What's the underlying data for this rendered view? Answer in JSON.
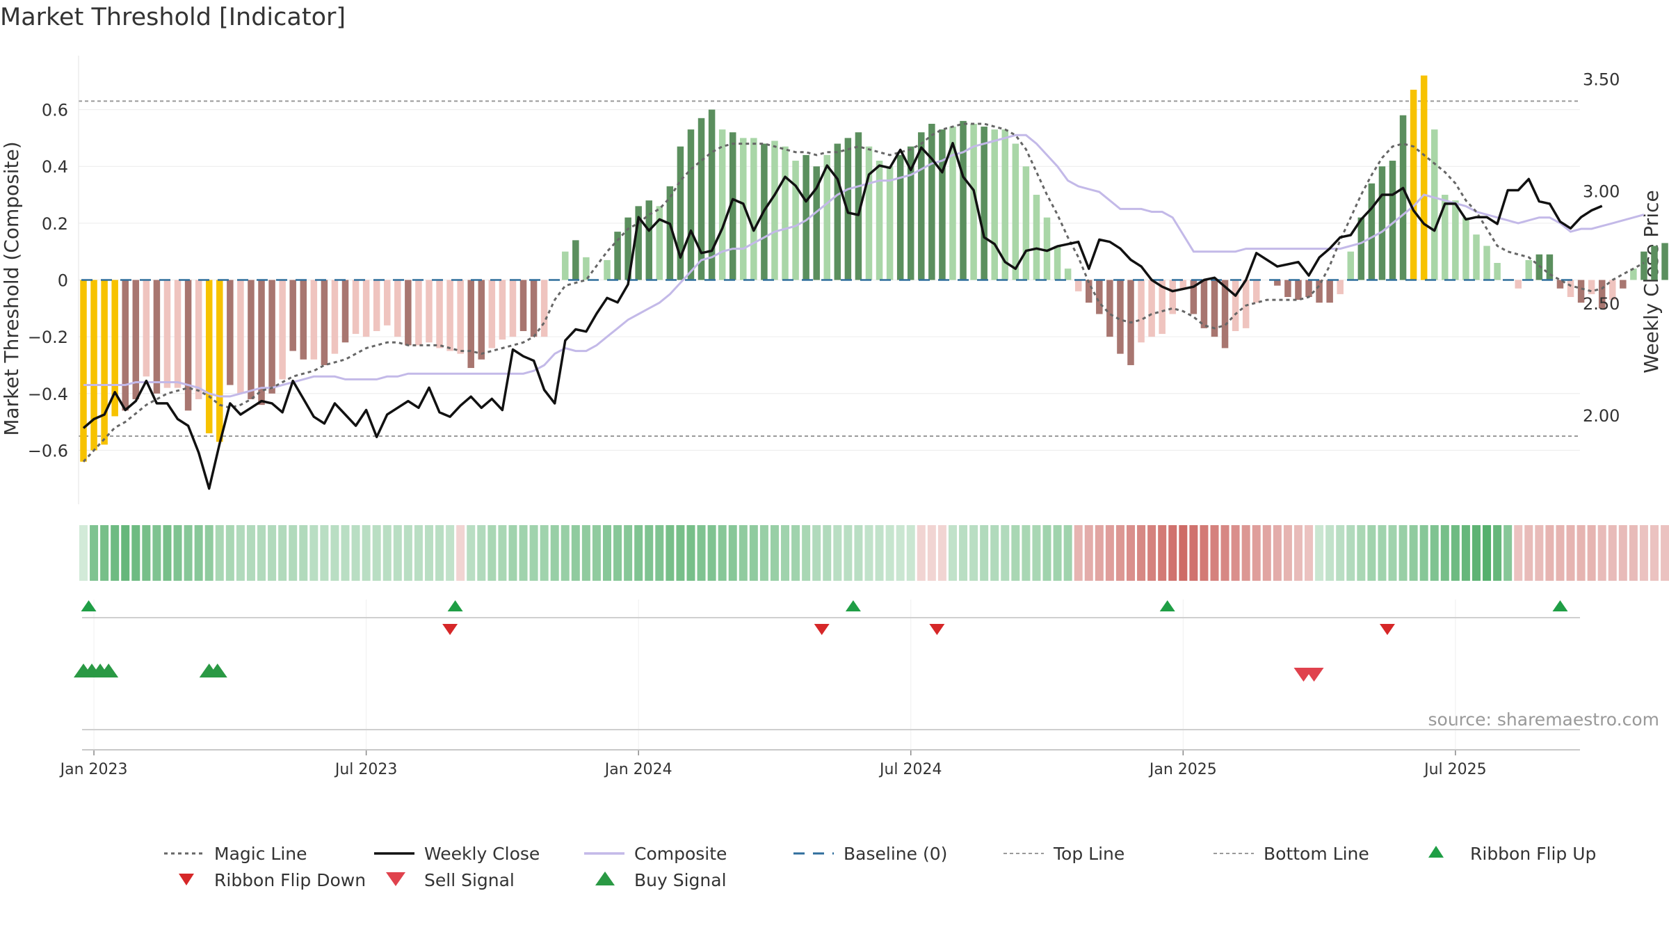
{
  "chart_data": {
    "type": "bar",
    "title": "Market Threshold [Indicator]",
    "ylabel_left": "Market Threshold (Composite)",
    "ylabel_right": "Weekly Close Price",
    "source": "source: sharemaestro.com",
    "ylim_left": [
      -0.79,
      0.79
    ],
    "ylim_right": [
      1.6,
      3.6
    ],
    "yticks_left": [
      {
        "v": -0.6,
        "label": "−0.6"
      },
      {
        "v": -0.4,
        "label": "−0.4"
      },
      {
        "v": -0.2,
        "label": "−0.2"
      },
      {
        "v": 0,
        "label": "0"
      },
      {
        "v": 0.2,
        "label": "0.2"
      },
      {
        "v": 0.4,
        "label": "0.4"
      },
      {
        "v": 0.6,
        "label": "0.6"
      }
    ],
    "yticks_right": [
      {
        "v": 2.0,
        "label": "2.00"
      },
      {
        "v": 2.5,
        "label": "2.50"
      },
      {
        "v": 3.0,
        "label": "3.00"
      },
      {
        "v": 3.5,
        "label": "3.50"
      }
    ],
    "xticks": [
      {
        "w": 1,
        "label": "Jan 2023"
      },
      {
        "w": 27,
        "label": "Jul 2023"
      },
      {
        "w": 53,
        "label": "Jan 2024"
      },
      {
        "w": 79,
        "label": "Jul 2024"
      },
      {
        "w": 105,
        "label": "Jan 2025"
      },
      {
        "w": 131,
        "label": "Jul 2025"
      }
    ],
    "top_line": 0.63,
    "bottom_line": -0.55,
    "colors": {
      "pos_strong": "#5b8f5e",
      "pos_weak": "#a9d6a7",
      "neg_strong": "#a87670",
      "neg_weak": "#efc4bf",
      "extreme": "#f7c200",
      "magic": "#666666",
      "close": "#111111",
      "composite": "#c3b9e8",
      "baseline": "#2f6e9c",
      "flip_up": "#1f9e45",
      "flip_down": "#d62728",
      "sell": "#e0424d",
      "buy": "#2a9944"
    },
    "bars": [
      -0.64,
      -0.6,
      -0.58,
      -0.48,
      -0.46,
      -0.42,
      -0.34,
      -0.4,
      -0.38,
      -0.38,
      -0.46,
      -0.42,
      -0.54,
      -0.57,
      -0.37,
      -0.4,
      -0.42,
      -0.44,
      -0.4,
      -0.35,
      -0.25,
      -0.28,
      -0.28,
      -0.3,
      -0.26,
      -0.22,
      -0.19,
      -0.2,
      -0.18,
      -0.16,
      -0.2,
      -0.23,
      -0.23,
      -0.22,
      -0.24,
      -0.25,
      -0.26,
      -0.31,
      -0.28,
      -0.24,
      -0.21,
      -0.2,
      -0.18,
      -0.2,
      -0.2,
      0.0,
      0.1,
      0.14,
      0.08,
      0.0,
      0.07,
      0.17,
      0.22,
      0.26,
      0.28,
      0.26,
      0.33,
      0.47,
      0.53,
      0.57,
      0.6,
      0.53,
      0.52,
      0.5,
      0.5,
      0.48,
      0.49,
      0.47,
      0.42,
      0.44,
      0.4,
      0.44,
      0.48,
      0.5,
      0.52,
      0.47,
      0.42,
      0.4,
      0.44,
      0.47,
      0.52,
      0.55,
      0.53,
      0.54,
      0.56,
      0.55,
      0.54,
      0.53,
      0.53,
      0.48,
      0.4,
      0.3,
      0.22,
      0.12,
      0.04,
      -0.04,
      -0.08,
      -0.12,
      -0.2,
      -0.26,
      -0.3,
      -0.22,
      -0.2,
      -0.19,
      -0.12,
      -0.03,
      -0.12,
      -0.17,
      -0.2,
      -0.24,
      -0.18,
      -0.17,
      -0.08,
      0.0,
      -0.02,
      -0.06,
      -0.07,
      -0.06,
      -0.08,
      -0.08,
      -0.05,
      0.1,
      0.22,
      0.34,
      0.4,
      0.42,
      0.58,
      0.67,
      0.72,
      0.53,
      0.3,
      0.28,
      0.22,
      0.16,
      0.12,
      0.06,
      0.0,
      -0.03,
      0.07,
      0.09,
      0.09,
      -0.03,
      -0.06,
      -0.08,
      -0.05,
      -0.1,
      -0.07,
      -0.03,
      0.04,
      0.1,
      0.12,
      0.13
    ],
    "bar_types": [
      "e",
      "e",
      "e",
      "e",
      "ns",
      "ns",
      "nw",
      "ns",
      "nw",
      "nw",
      "ns",
      "nw",
      "e",
      "e",
      "ns",
      "nw",
      "ns",
      "ns",
      "ns",
      "nw",
      "ns",
      "ns",
      "nw",
      "ns",
      "nw",
      "ns",
      "nw",
      "nw",
      "nw",
      "nw",
      "nw",
      "ns",
      "nw",
      "nw",
      "nw",
      "nw",
      "nw",
      "ns",
      "ns",
      "nw",
      "nw",
      "nw",
      "ns",
      "ns",
      "nw",
      "z",
      "pw",
      "ps",
      "pw",
      "z",
      "pw",
      "ps",
      "ps",
      "ps",
      "ps",
      "pw",
      "ps",
      "ps",
      "ps",
      "ps",
      "ps",
      "pw",
      "ps",
      "pw",
      "pw",
      "ps",
      "pw",
      "pw",
      "pw",
      "ps",
      "ps",
      "pw",
      "ps",
      "ps",
      "ps",
      "pw",
      "pw",
      "pw",
      "ps",
      "ps",
      "ps",
      "ps",
      "ps",
      "pw",
      "ps",
      "pw",
      "ps",
      "pw",
      "pw",
      "pw",
      "pw",
      "pw",
      "pw",
      "pw",
      "pw",
      "nw",
      "ns",
      "ns",
      "ns",
      "ns",
      "ns",
      "nw",
      "nw",
      "nw",
      "nw",
      "nw",
      "ns",
      "ns",
      "ns",
      "ns",
      "nw",
      "nw",
      "nw",
      "z",
      "ns",
      "ns",
      "ns",
      "ns",
      "ns",
      "ns",
      "nw",
      "pw",
      "ps",
      "ps",
      "ps",
      "ps",
      "ps",
      "e",
      "e",
      "pw",
      "pw",
      "pw",
      "pw",
      "pw",
      "pw",
      "pw",
      "z",
      "nw",
      "pw",
      "ps",
      "ps",
      "ns",
      "nw",
      "ns",
      "nw",
      "ns",
      "nw",
      "ns",
      "pw",
      "ps",
      "ps",
      "ps"
    ],
    "composite": [
      -0.37,
      -0.37,
      -0.37,
      -0.37,
      -0.37,
      -0.36,
      -0.36,
      -0.36,
      -0.36,
      -0.36,
      -0.37,
      -0.38,
      -0.4,
      -0.41,
      -0.41,
      -0.4,
      -0.39,
      -0.38,
      -0.38,
      -0.37,
      -0.36,
      -0.35,
      -0.34,
      -0.34,
      -0.34,
      -0.35,
      -0.35,
      -0.35,
      -0.35,
      -0.34,
      -0.34,
      -0.33,
      -0.33,
      -0.33,
      -0.33,
      -0.33,
      -0.33,
      -0.33,
      -0.33,
      -0.33,
      -0.33,
      -0.33,
      -0.33,
      -0.32,
      -0.3,
      -0.26,
      -0.24,
      -0.25,
      -0.25,
      -0.23,
      -0.2,
      -0.17,
      -0.14,
      -0.12,
      -0.1,
      -0.08,
      -0.05,
      -0.01,
      0.03,
      0.07,
      0.08,
      0.1,
      0.11,
      0.11,
      0.13,
      0.15,
      0.17,
      0.18,
      0.19,
      0.21,
      0.24,
      0.27,
      0.3,
      0.32,
      0.33,
      0.34,
      0.35,
      0.35,
      0.36,
      0.37,
      0.39,
      0.41,
      0.42,
      0.44,
      0.45,
      0.47,
      0.48,
      0.49,
      0.5,
      0.51,
      0.51,
      0.48,
      0.44,
      0.4,
      0.35,
      0.33,
      0.32,
      0.31,
      0.28,
      0.25,
      0.25,
      0.25,
      0.24,
      0.24,
      0.22,
      0.16,
      0.1,
      0.1,
      0.1,
      0.1,
      0.1,
      0.11,
      0.11,
      0.11,
      0.11,
      0.11,
      0.11,
      0.11,
      0.11,
      0.11,
      0.11,
      0.12,
      0.13,
      0.15,
      0.17,
      0.2,
      0.23,
      0.26,
      0.3,
      0.29,
      0.28,
      0.27,
      0.26,
      0.24,
      0.23,
      0.22,
      0.21,
      0.2,
      0.21,
      0.22,
      0.22,
      0.2,
      0.17,
      0.18,
      0.18,
      0.19,
      0.2,
      0.21,
      0.22,
      0.23
    ],
    "magic": [
      -0.64,
      -0.6,
      -0.56,
      -0.52,
      -0.5,
      -0.47,
      -0.44,
      -0.42,
      -0.4,
      -0.39,
      -0.38,
      -0.39,
      -0.41,
      -0.44,
      -0.45,
      -0.44,
      -0.42,
      -0.39,
      -0.38,
      -0.36,
      -0.34,
      -0.33,
      -0.32,
      -0.3,
      -0.29,
      -0.28,
      -0.26,
      -0.24,
      -0.23,
      -0.22,
      -0.22,
      -0.23,
      -0.23,
      -0.23,
      -0.23,
      -0.24,
      -0.25,
      -0.25,
      -0.26,
      -0.25,
      -0.24,
      -0.23,
      -0.22,
      -0.2,
      -0.15,
      -0.07,
      -0.02,
      -0.01,
      0.0,
      0.05,
      0.1,
      0.14,
      0.18,
      0.2,
      0.23,
      0.25,
      0.29,
      0.35,
      0.39,
      0.42,
      0.45,
      0.47,
      0.48,
      0.48,
      0.48,
      0.48,
      0.47,
      0.46,
      0.45,
      0.45,
      0.44,
      0.45,
      0.45,
      0.46,
      0.47,
      0.46,
      0.45,
      0.44,
      0.45,
      0.46,
      0.48,
      0.51,
      0.53,
      0.54,
      0.55,
      0.55,
      0.55,
      0.54,
      0.53,
      0.51,
      0.46,
      0.38,
      0.3,
      0.23,
      0.15,
      0.08,
      -0.01,
      -0.08,
      -0.12,
      -0.14,
      -0.15,
      -0.14,
      -0.12,
      -0.11,
      -0.1,
      -0.11,
      -0.13,
      -0.16,
      -0.17,
      -0.16,
      -0.12,
      -0.09,
      -0.08,
      -0.07,
      -0.07,
      -0.07,
      -0.07,
      -0.06,
      -0.02,
      0.05,
      0.14,
      0.22,
      0.3,
      0.37,
      0.43,
      0.47,
      0.48,
      0.47,
      0.44,
      0.41,
      0.38,
      0.34,
      0.28,
      0.24,
      0.18,
      0.12,
      0.1,
      0.09,
      0.08,
      0.05,
      0.02,
      0.0,
      -0.02,
      -0.03,
      -0.04,
      -0.03,
      0.0,
      0.02,
      0.04,
      0.06
    ],
    "weekly_close": [
      1.94,
      1.98,
      2.0,
      2.1,
      2.02,
      2.06,
      2.15,
      2.05,
      2.05,
      1.98,
      1.95,
      1.83,
      1.67,
      1.87,
      2.05,
      2.0,
      2.03,
      2.06,
      2.05,
      2.01,
      2.15,
      2.07,
      1.99,
      1.96,
      2.05,
      2.0,
      1.95,
      2.02,
      1.9,
      2.0,
      2.03,
      2.06,
      2.03,
      2.12,
      2.01,
      1.99,
      2.04,
      2.08,
      2.03,
      2.07,
      2.02,
      2.29,
      2.26,
      2.24,
      2.11,
      2.05,
      2.33,
      2.38,
      2.37,
      2.45,
      2.52,
      2.5,
      2.58,
      2.88,
      2.82,
      2.87,
      2.85,
      2.7,
      2.82,
      2.72,
      2.73,
      2.83,
      2.96,
      2.94,
      2.82,
      2.91,
      2.98,
      3.06,
      3.02,
      2.95,
      3.01,
      3.11,
      3.05,
      2.9,
      2.89,
      3.07,
      3.11,
      3.1,
      3.18,
      3.09,
      3.19,
      3.14,
      3.08,
      3.21,
      3.06,
      3.0,
      2.79,
      2.76,
      2.68,
      2.65,
      2.73,
      2.74,
      2.73,
      2.75,
      2.76,
      2.77,
      2.65,
      2.78,
      2.77,
      2.74,
      2.69,
      2.66,
      2.6,
      2.57,
      2.55,
      2.56,
      2.57,
      2.6,
      2.61,
      2.57,
      2.53,
      2.6,
      2.72,
      2.69,
      2.66,
      2.67,
      2.68,
      2.62,
      2.7,
      2.74,
      2.79,
      2.8,
      2.87,
      2.92,
      2.98,
      2.98,
      3.01,
      2.91,
      2.85,
      2.82,
      2.94,
      2.94,
      2.87,
      2.88,
      2.88,
      2.85,
      3.0,
      3.0,
      3.05,
      2.95,
      2.94,
      2.86,
      2.83,
      2.88,
      2.91,
      2.93
    ],
    "ribbon": [
      0.05,
      0.55,
      0.6,
      0.65,
      0.7,
      0.65,
      0.6,
      0.55,
      0.6,
      0.55,
      0.5,
      0.5,
      0.45,
      0.3,
      0.3,
      0.25,
      0.25,
      0.25,
      0.25,
      0.25,
      0.25,
      0.25,
      0.2,
      0.2,
      0.2,
      0.2,
      0.2,
      0.2,
      0.2,
      0.2,
      0.2,
      0.2,
      0.2,
      0.2,
      0.2,
      0.15,
      -0.08,
      0.2,
      0.25,
      0.3,
      0.3,
      0.35,
      0.35,
      0.35,
      0.35,
      0.4,
      0.4,
      0.45,
      0.45,
      0.45,
      0.5,
      0.5,
      0.5,
      0.55,
      0.55,
      0.55,
      0.6,
      0.6,
      0.6,
      0.55,
      0.55,
      0.5,
      0.5,
      0.45,
      0.45,
      0.4,
      0.4,
      0.35,
      0.35,
      0.3,
      0.25,
      0.25,
      0.2,
      0.2,
      0.2,
      0.15,
      0.15,
      0.12,
      0.1,
      0.1,
      -0.08,
      -0.08,
      -0.08,
      0.15,
      0.2,
      0.2,
      0.25,
      0.25,
      0.25,
      0.3,
      0.3,
      0.3,
      0.35,
      0.35,
      0.35,
      -0.3,
      -0.35,
      -0.4,
      -0.45,
      -0.5,
      -0.55,
      -0.6,
      -0.65,
      -0.7,
      -0.75,
      -0.8,
      -0.75,
      -0.7,
      -0.65,
      -0.6,
      -0.55,
      -0.5,
      -0.45,
      -0.4,
      -0.35,
      -0.3,
      -0.25,
      -0.2,
      0.1,
      0.15,
      0.2,
      0.25,
      0.3,
      0.35,
      0.35,
      0.35,
      0.4,
      0.45,
      0.5,
      0.55,
      0.6,
      0.65,
      0.7,
      0.75,
      0.8,
      0.7,
      0.5,
      -0.2,
      -0.25,
      -0.25,
      -0.3,
      -0.3,
      -0.3,
      -0.3,
      -0.3,
      -0.25,
      -0.25,
      -0.25,
      -0.25,
      -0.2,
      -0.2,
      -0.2,
      -0.2,
      -0.15,
      -0.15,
      -0.1,
      0.2
    ],
    "ribbon_flip_up_weeks": [
      0.5,
      35.5,
      73.5,
      103.5,
      141
    ],
    "ribbon_flip_down_weeks": [
      35,
      70.5,
      81.5,
      124.5
    ],
    "buy_signal_weeks": [
      0,
      0.8,
      1.6,
      2.4,
      12,
      12.8
    ],
    "sell_signal_weeks": [
      116.5,
      117.5
    ],
    "legend": {
      "magic": "Magic Line",
      "close": "Weekly Close",
      "composite": "Composite",
      "baseline": "Baseline (0)",
      "top": "Top Line",
      "bottom": "Bottom Line",
      "flip_up": "Ribbon Flip Up",
      "flip_down": "Ribbon Flip Down",
      "sell": "Sell Signal",
      "buy": "Buy Signal"
    }
  }
}
